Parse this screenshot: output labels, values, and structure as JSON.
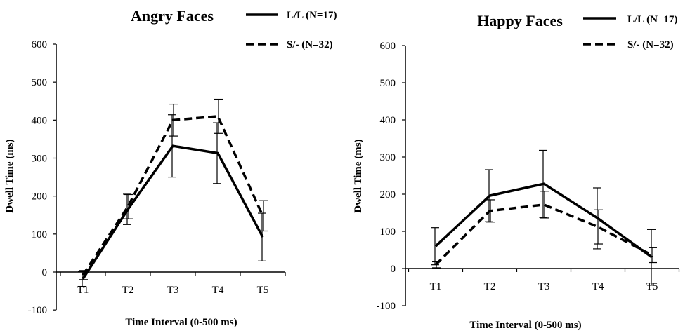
{
  "chart_data": [
    {
      "type": "line",
      "title": "Angry Faces",
      "xlabel": "Time Interval (0-500 ms)",
      "ylabel": "Dwell Time (ms)",
      "categories": [
        "T1",
        "T2",
        "T3",
        "T4",
        "T5"
      ],
      "ylim": [
        -100,
        600
      ],
      "yticks": [
        "-100",
        "0",
        "100",
        "200",
        "300",
        "400",
        "500",
        "600"
      ],
      "legend_position": "top-right",
      "series": [
        {
          "name": "L/L (N=17)",
          "style": "solid",
          "values": [
            -18,
            165,
            332,
            313,
            92
          ],
          "errors": [
            20,
            40,
            82,
            80,
            63
          ]
        },
        {
          "name": "S/-  (N=32)",
          "style": "dashed",
          "values": [
            -8,
            172,
            400,
            410,
            148
          ],
          "errors": [
            12,
            32,
            42,
            45,
            40
          ]
        }
      ]
    },
    {
      "type": "line",
      "title": "Happy Faces",
      "xlabel": "Time Interval (0-500 ms)",
      "ylabel": "Dwell Time (ms)",
      "categories": [
        "T1",
        "T2",
        "T3",
        "T4",
        "T5"
      ],
      "ylim": [
        -100,
        600
      ],
      "yticks": [
        "-100",
        "0",
        "100",
        "200",
        "300",
        "400",
        "500",
        "600"
      ],
      "legend_position": "top-right",
      "series": [
        {
          "name": "L/L (N=17)",
          "style": "solid",
          "values": [
            60,
            196,
            228,
            135,
            30
          ],
          "errors": [
            50,
            70,
            90,
            82,
            75
          ]
        },
        {
          "name": "S/-  (N=32)",
          "style": "dashed",
          "values": [
            10,
            155,
            172,
            112,
            36
          ],
          "errors": [
            8,
            30,
            36,
            46,
            20
          ]
        }
      ]
    }
  ]
}
